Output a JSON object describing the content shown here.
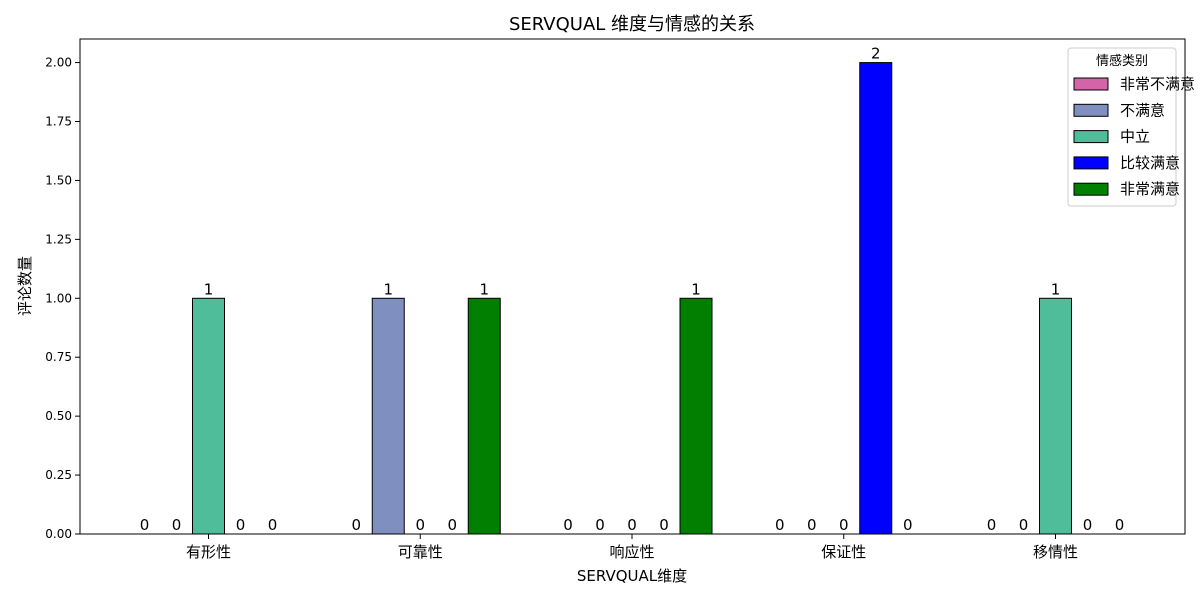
{
  "chart_data": {
    "type": "bar",
    "title": "SERVQUAL 维度与情感的关系",
    "xlabel": "SERVQUAL维度",
    "ylabel": "评论数量",
    "categories": [
      "有形性",
      "可靠性",
      "响应性",
      "保证性",
      "移情性"
    ],
    "ylim": [
      0,
      2.1
    ],
    "yticks": [
      "0.00",
      "0.25",
      "0.50",
      "0.75",
      "1.00",
      "1.25",
      "1.50",
      "1.75",
      "2.00"
    ],
    "grid": false,
    "legend_title": "情感类别",
    "legend_position": "top-right",
    "series": [
      {
        "name": "非常不满意",
        "color": "#d464a8",
        "values": [
          0,
          0,
          0,
          0,
          0
        ]
      },
      {
        "name": "不满意",
        "color": "#7f8fbf",
        "values": [
          0,
          1,
          0,
          0,
          0
        ]
      },
      {
        "name": "中立",
        "color": "#4fbc9a",
        "values": [
          1,
          0,
          0,
          0,
          1
        ]
      },
      {
        "name": "比较满意",
        "color": "#0000ff",
        "values": [
          0,
          0,
          0,
          2,
          0
        ]
      },
      {
        "name": "非常满意",
        "color": "#007f00",
        "values": [
          0,
          1,
          1,
          0,
          0
        ]
      }
    ]
  }
}
